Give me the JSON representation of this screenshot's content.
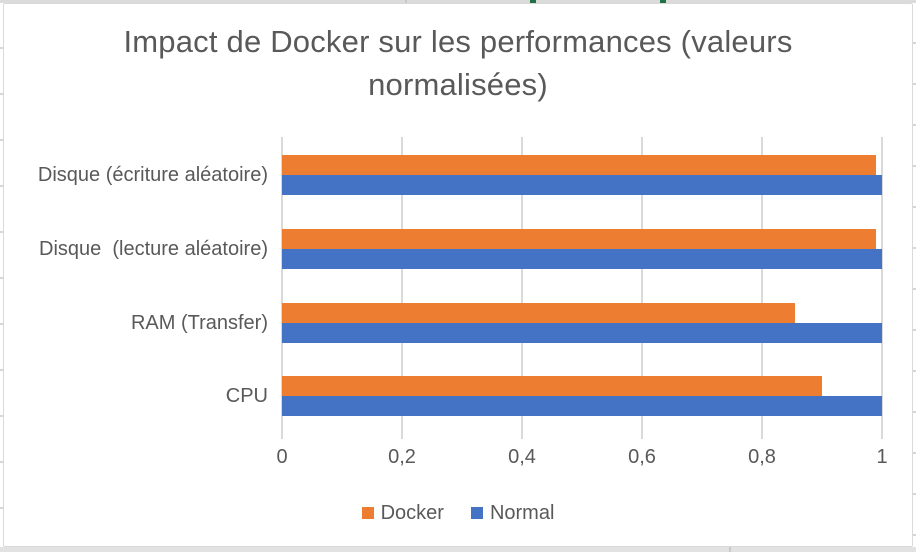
{
  "chart_data": {
    "type": "bar",
    "orientation": "horizontal",
    "title": "Impact de Docker sur les performances (valeurs normalisées)",
    "categories": [
      "Disque (écriture aléatoire)",
      "Disque  (lecture aléatoire)",
      "RAM (Transfer)",
      "CPU"
    ],
    "series": [
      {
        "name": "Docker",
        "color": "#ED7D31",
        "values": [
          0.99,
          0.99,
          0.855,
          0.9
        ]
      },
      {
        "name": "Normal",
        "color": "#4472C4",
        "values": [
          1.0,
          1.0,
          1.0,
          1.0
        ]
      }
    ],
    "x_ticks": [
      "0",
      "0,2",
      "0,4",
      "0,6",
      "0,8",
      "1"
    ],
    "x_tick_values": [
      0,
      0.2,
      0.4,
      0.6,
      0.8,
      1
    ],
    "xlim": [
      0,
      1
    ],
    "grid": true,
    "legend_position": "bottom"
  },
  "colors": {
    "text": "#595959",
    "gridline": "#D9D9D9",
    "chart_border": "#D9D9D9",
    "sheet_accent_green": "#1F7246"
  }
}
